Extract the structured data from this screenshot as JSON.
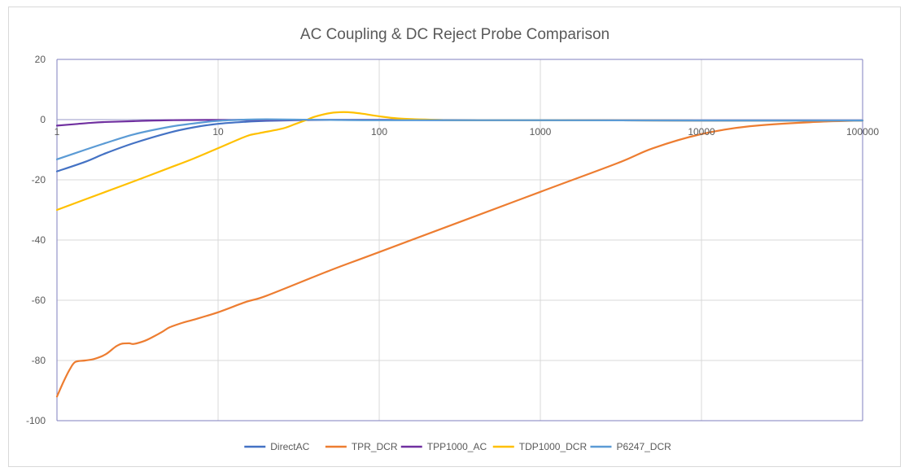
{
  "chart_data": {
    "type": "line",
    "title": "AC Coupling & DC Reject Probe Comparison",
    "xlabel": "",
    "ylabel": "",
    "x_scale": "log",
    "xlim": [
      1,
      100000
    ],
    "ylim": [
      -100,
      20
    ],
    "x_ticks": [
      1,
      10,
      100,
      1000,
      10000,
      100000
    ],
    "x_tick_labels": [
      "1",
      "10",
      "100",
      "1000",
      "10000",
      "100000"
    ],
    "y_ticks": [
      -100,
      -80,
      -60,
      -40,
      -20,
      0,
      20
    ],
    "y_tick_labels": [
      "-100",
      "-80",
      "-60",
      "-40",
      "-20",
      "0",
      "20"
    ],
    "grid": true,
    "legend_position": "bottom",
    "series": [
      {
        "name": "DirectAC",
        "color": "#4472c4",
        "points": [
          [
            1,
            -17.2
          ],
          [
            1.5,
            -14
          ],
          [
            2,
            -11.2
          ],
          [
            3,
            -7.8
          ],
          [
            5,
            -4.3
          ],
          [
            7,
            -2.6
          ],
          [
            10,
            -1.4
          ],
          [
            15,
            -0.7
          ],
          [
            20,
            -0.4
          ],
          [
            30,
            -0.2
          ],
          [
            50,
            -0.1
          ],
          [
            100,
            -0.1
          ],
          [
            1000,
            -0.2
          ],
          [
            10000,
            -0.3
          ],
          [
            100000,
            -0.3
          ]
        ]
      },
      {
        "name": "TPR_DCR",
        "color": "#ed7d31",
        "points": [
          [
            1,
            -92
          ],
          [
            1.1,
            -87
          ],
          [
            1.2,
            -83
          ],
          [
            1.3,
            -80.5
          ],
          [
            1.5,
            -80
          ],
          [
            1.7,
            -79.5
          ],
          [
            2,
            -78
          ],
          [
            2.3,
            -75.5
          ],
          [
            2.5,
            -74.5
          ],
          [
            2.8,
            -74.3
          ],
          [
            3,
            -74.5
          ],
          [
            3.5,
            -73.5
          ],
          [
            4,
            -72
          ],
          [
            4.5,
            -70.5
          ],
          [
            5,
            -69
          ],
          [
            6,
            -67.5
          ],
          [
            7,
            -66.5
          ],
          [
            10,
            -64
          ],
          [
            15,
            -60.5
          ],
          [
            20,
            -58.5
          ],
          [
            50,
            -50
          ],
          [
            100,
            -44
          ],
          [
            1000,
            -24
          ],
          [
            3000,
            -14.5
          ],
          [
            5000,
            -9.5
          ],
          [
            10000,
            -4.8
          ],
          [
            20000,
            -2.2
          ],
          [
            50000,
            -0.8
          ],
          [
            100000,
            -0.3
          ]
        ]
      },
      {
        "name": "TPP1000_AC",
        "color": "#7030a0",
        "points": [
          [
            1,
            -2
          ],
          [
            1.3,
            -1.5
          ],
          [
            1.6,
            -1.1
          ],
          [
            2,
            -0.8
          ],
          [
            3,
            -0.5
          ],
          [
            5,
            -0.2
          ],
          [
            10,
            -0.1
          ],
          [
            100,
            -0.1
          ],
          [
            1000,
            -0.2
          ],
          [
            10000,
            -0.3
          ],
          [
            100000,
            -0.3
          ]
        ]
      },
      {
        "name": "TDP1000_DCR",
        "color": "#ffc000",
        "points": [
          [
            1,
            -30
          ],
          [
            2,
            -24
          ],
          [
            3,
            -20.5
          ],
          [
            5,
            -16
          ],
          [
            7,
            -13
          ],
          [
            10,
            -9.5
          ],
          [
            15,
            -5.5
          ],
          [
            18,
            -4.5
          ],
          [
            25,
            -3
          ],
          [
            30,
            -1.5
          ],
          [
            35,
            -0.2
          ],
          [
            40,
            1
          ],
          [
            50,
            2.2
          ],
          [
            60,
            2.5
          ],
          [
            70,
            2.3
          ],
          [
            80,
            1.9
          ],
          [
            100,
            1.1
          ],
          [
            130,
            0.4
          ],
          [
            200,
            0
          ],
          [
            300,
            -0.2
          ],
          [
            1000,
            -0.2
          ],
          [
            10000,
            -0.3
          ],
          [
            100000,
            -0.3
          ]
        ]
      },
      {
        "name": "P6247_DCR",
        "color": "#5b9bd5",
        "points": [
          [
            1,
            -13.2
          ],
          [
            1.5,
            -10
          ],
          [
            2,
            -7.8
          ],
          [
            3,
            -4.9
          ],
          [
            5,
            -2.4
          ],
          [
            7,
            -1.3
          ],
          [
            10,
            -0.4
          ],
          [
            15,
            0
          ],
          [
            20,
            0.1
          ],
          [
            30,
            0
          ],
          [
            50,
            -0.1
          ],
          [
            100,
            -0.2
          ],
          [
            1000,
            -0.2
          ],
          [
            10000,
            -0.3
          ],
          [
            100000,
            -0.3
          ]
        ]
      }
    ]
  }
}
